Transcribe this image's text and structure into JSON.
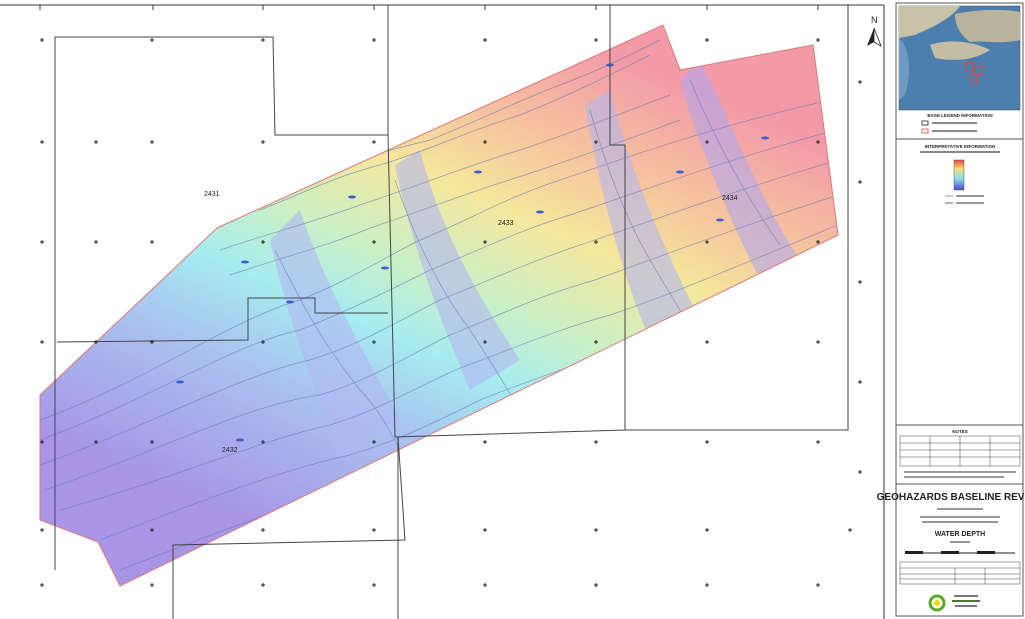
{
  "map": {
    "block_labels": [
      "2431",
      "2433",
      "2434",
      "2432"
    ],
    "north_label": "N"
  },
  "sidebar": {
    "base_legend_title": "BASE LEGEND INFORMATION",
    "interp_title": "INTERPRETATIVE INFORMATION",
    "notes_title": "NOTES",
    "title_main": "GEOHAZARDS BASELINE REVIEW",
    "title_map": "WATER DEPTH"
  },
  "colors": {
    "shallow": "#f39aa8",
    "mid_warm": "#f5e79c",
    "mid_cool": "#a6ecf0",
    "deep": "#a895e6",
    "contour": "#6f7fb5",
    "survey_outline": "#e07878",
    "logo_green": "#5aa829"
  }
}
